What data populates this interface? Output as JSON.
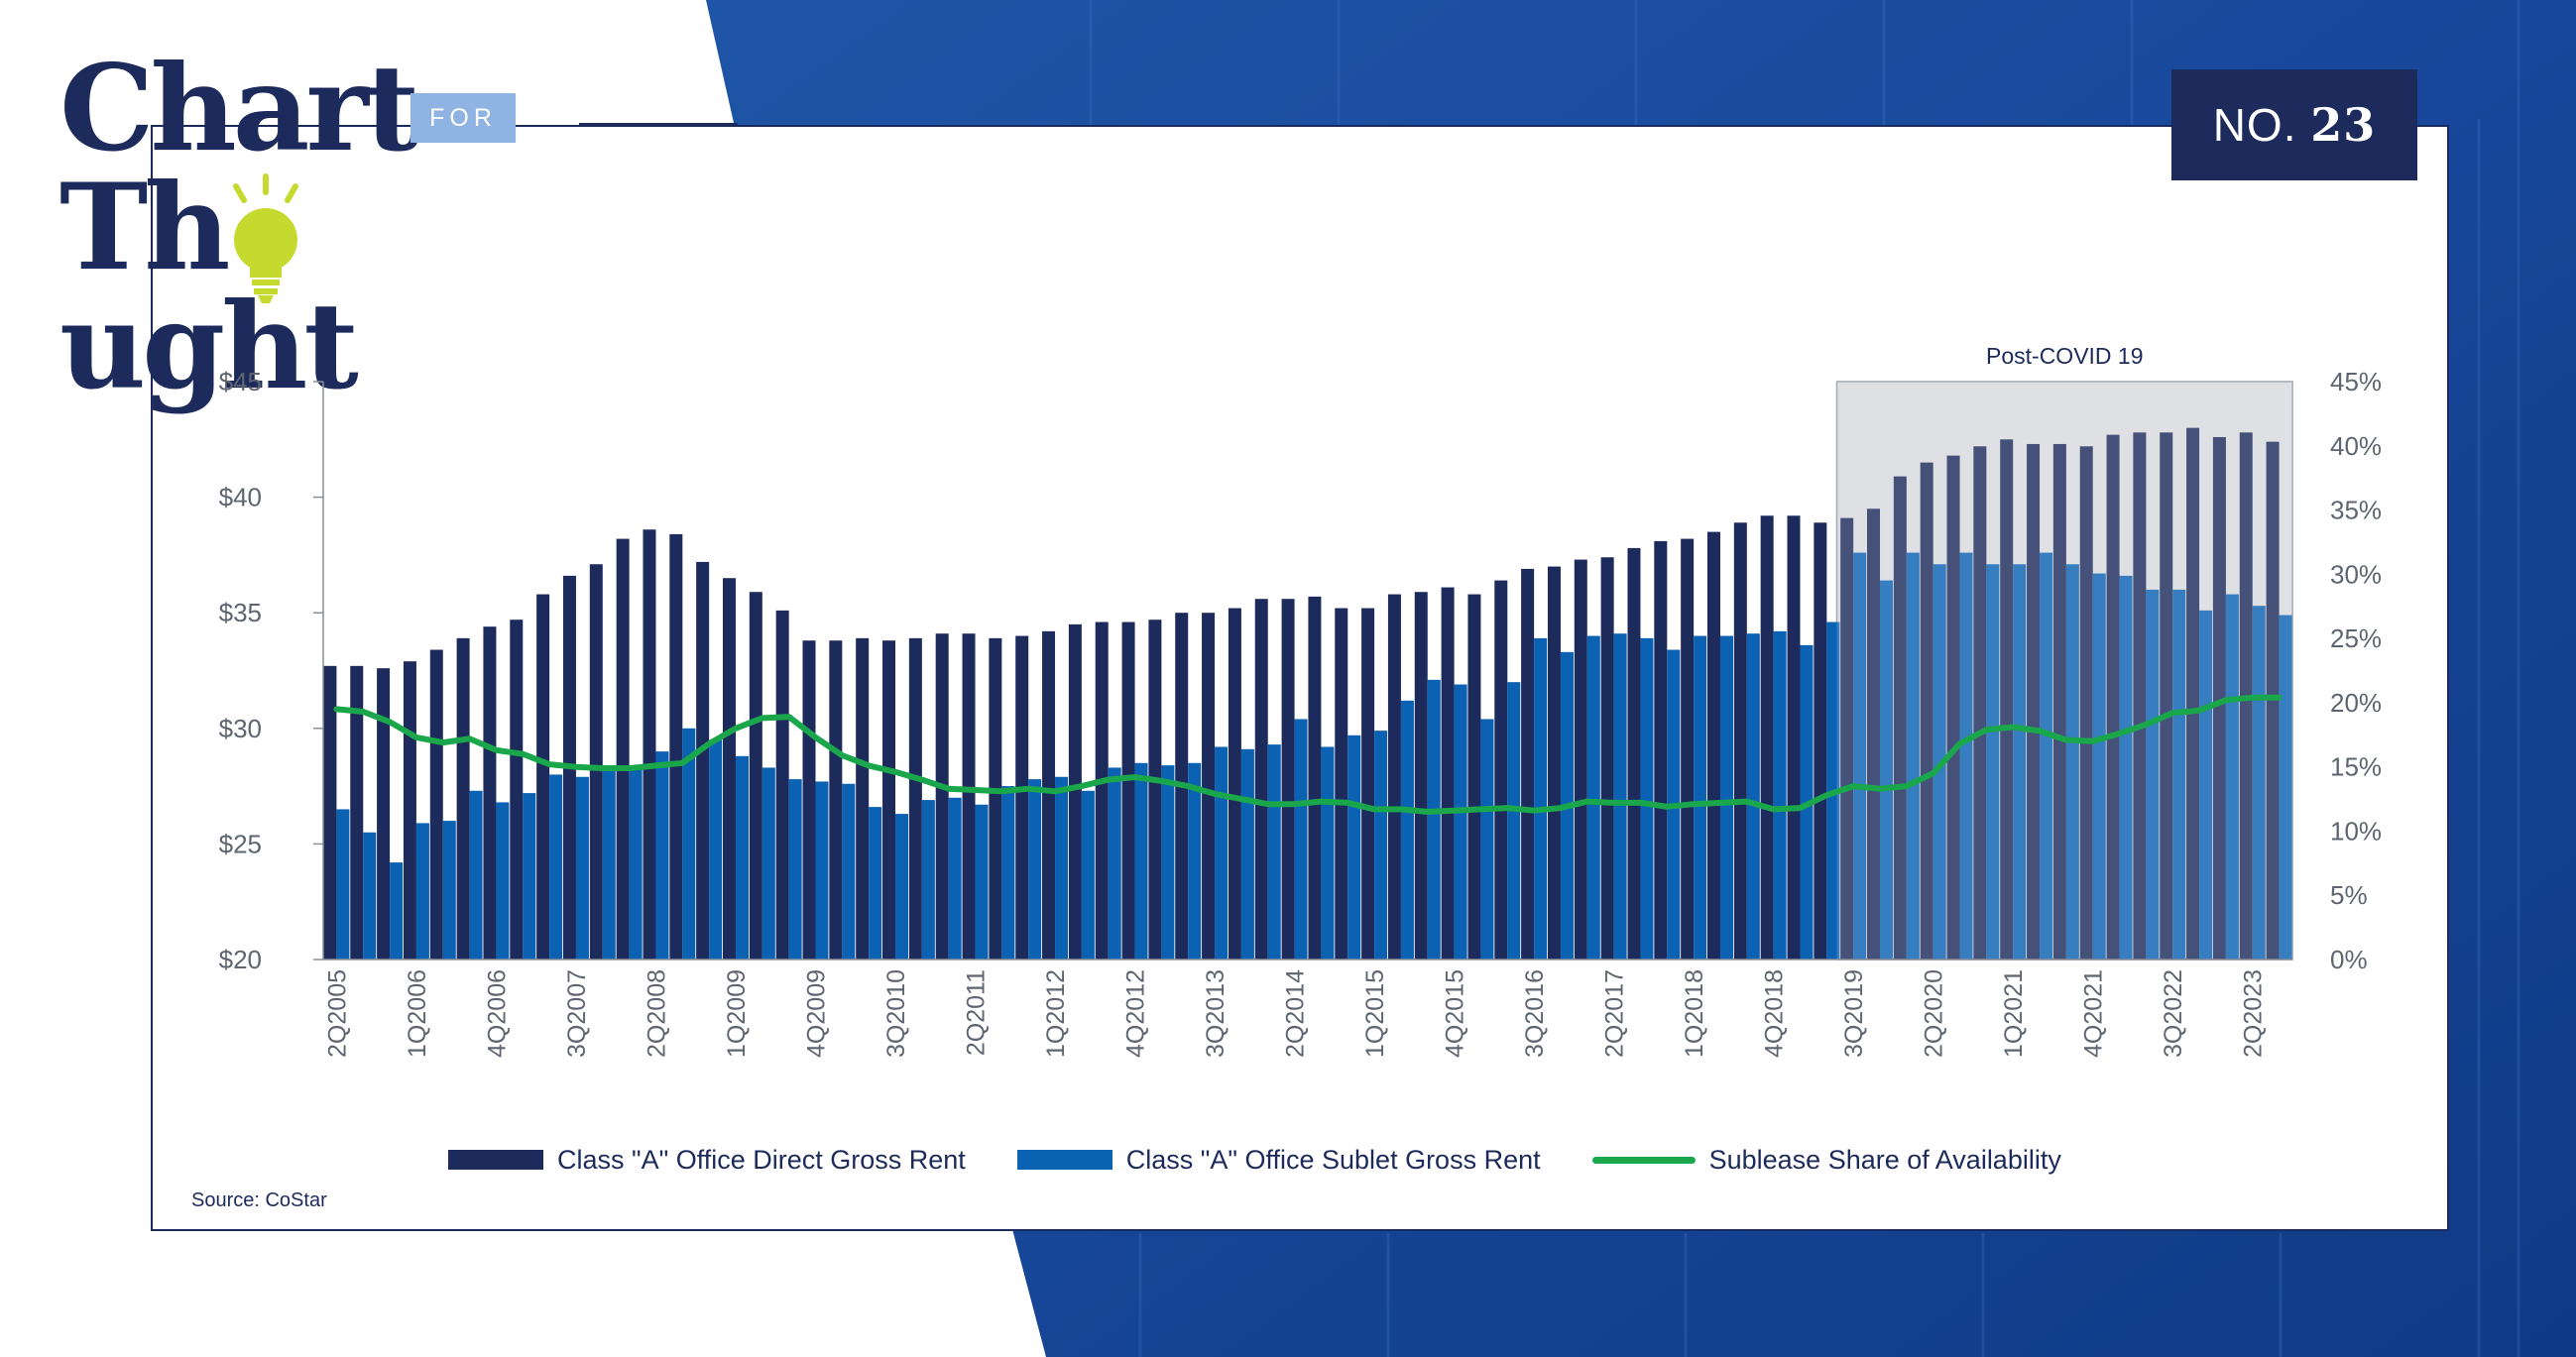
{
  "brand": {
    "line1": "Chart",
    "for": "FOR",
    "line2a": "Th",
    "line2b": "ught"
  },
  "badge": {
    "prefix": "NO.",
    "number": "23"
  },
  "source": "Source: CoStar",
  "colors": {
    "direct": "#1d2b5c",
    "sublet": "#0b62b3",
    "share": "#1aa64a",
    "shade": "#d7d9dd",
    "axis": "#8a8f99"
  },
  "chart_data": {
    "type": "bar",
    "title": "",
    "annotation": "Post-COVID 19",
    "xlabel": "",
    "ylabel": "",
    "ylim": [
      20,
      45
    ],
    "y_ticks": [
      "$20",
      "$25",
      "$30",
      "$35",
      "$40",
      "$45"
    ],
    "y2lim": [
      0,
      45
    ],
    "y2_ticks": [
      "0%",
      "5%",
      "10%",
      "15%",
      "20%",
      "25%",
      "30%",
      "35%",
      "40%",
      "45%"
    ],
    "categories": [
      "2Q2005",
      "3Q2005",
      "4Q2005",
      "1Q2006",
      "2Q2006",
      "3Q2006",
      "4Q2006",
      "1Q2007",
      "2Q2007",
      "3Q2007",
      "4Q2007",
      "1Q2008",
      "2Q2008",
      "3Q2008",
      "4Q2008",
      "1Q2009",
      "2Q2009",
      "3Q2009",
      "4Q2009",
      "1Q2010",
      "2Q2010",
      "3Q2010",
      "4Q2010",
      "1Q2011",
      "2Q2011",
      "3Q2011",
      "4Q2011",
      "1Q2012",
      "2Q2012",
      "3Q2012",
      "4Q2012",
      "1Q2013",
      "2Q2013",
      "3Q2013",
      "4Q2013",
      "1Q2014",
      "2Q2014",
      "3Q2014",
      "4Q2014",
      "1Q2015",
      "2Q2015",
      "3Q2015",
      "4Q2015",
      "1Q2016",
      "2Q2016",
      "3Q2016",
      "4Q2016",
      "1Q2017",
      "2Q2017",
      "3Q2017",
      "4Q2017",
      "1Q2018",
      "2Q2018",
      "3Q2018",
      "4Q2018",
      "1Q2019",
      "2Q2019",
      "3Q2019",
      "4Q2019",
      "1Q2020",
      "2Q2020",
      "3Q2020",
      "4Q2020",
      "1Q2021",
      "2Q2021",
      "3Q2021",
      "4Q2021",
      "1Q2022",
      "2Q2022",
      "3Q2022",
      "4Q2022",
      "1Q2023",
      "2Q2023",
      "3Q2023"
    ],
    "x_tick_labels": [
      "2Q2005",
      "1Q2006",
      "4Q2006",
      "3Q2007",
      "2Q2008",
      "1Q2009",
      "4Q2009",
      "3Q2010",
      "2Q2011",
      "1Q2012",
      "4Q2012",
      "3Q2013",
      "2Q2014",
      "1Q2015",
      "4Q2015",
      "3Q2016",
      "2Q2017",
      "1Q2018",
      "4Q2018",
      "3Q2019",
      "2Q2020",
      "1Q2021",
      "4Q2021",
      "3Q2022",
      "2Q2023"
    ],
    "x_tick_every": 3,
    "shade_from": "3Q2019",
    "series": [
      {
        "name": "Class \"A\" Office Direct Gross Rent",
        "kind": "bar",
        "axis": "left",
        "values": [
          32.7,
          32.7,
          32.6,
          32.9,
          33.4,
          33.9,
          34.4,
          34.7,
          35.8,
          36.6,
          37.1,
          38.2,
          38.6,
          38.4,
          37.2,
          36.5,
          35.9,
          35.1,
          33.8,
          33.8,
          33.9,
          33.8,
          33.9,
          34.1,
          34.1,
          33.9,
          34.0,
          34.2,
          34.5,
          34.6,
          34.6,
          34.7,
          35.0,
          35.0,
          35.2,
          35.6,
          35.6,
          35.7,
          35.2,
          35.2,
          35.8,
          35.9,
          36.1,
          35.8,
          36.4,
          36.9,
          37.0,
          37.3,
          37.4,
          37.8,
          38.1,
          38.2,
          38.5,
          38.9,
          39.2,
          39.2,
          38.9,
          39.1,
          39.5,
          40.9,
          41.5,
          41.8,
          42.2,
          42.5,
          42.3,
          42.3,
          42.2,
          42.7,
          42.8,
          42.8,
          43.0,
          42.6,
          42.8,
          42.4
        ]
      },
      {
        "name": "Class \"A\" Office Sublet Gross Rent",
        "kind": "bar",
        "axis": "left",
        "values": [
          26.5,
          25.5,
          24.2,
          25.9,
          26.0,
          27.3,
          26.8,
          27.2,
          28.0,
          27.9,
          28.3,
          28.3,
          29.0,
          30.0,
          29.5,
          28.8,
          28.3,
          27.8,
          27.7,
          27.6,
          26.6,
          26.3,
          26.9,
          27.0,
          26.7,
          27.5,
          27.8,
          27.9,
          27.3,
          28.3,
          28.5,
          28.4,
          28.5,
          29.2,
          29.1,
          29.3,
          30.4,
          29.2,
          29.7,
          29.9,
          31.2,
          32.1,
          31.9,
          30.4,
          32.0,
          33.9,
          33.3,
          34.0,
          34.1,
          33.9,
          33.4,
          34.0,
          34.0,
          34.1,
          34.2,
          33.6,
          34.6,
          37.6,
          36.4,
          37.6,
          37.1,
          37.6,
          37.1,
          37.1,
          37.6,
          37.1,
          36.7,
          36.6,
          36.0,
          36.0,
          35.1,
          35.8,
          35.3,
          34.9
        ]
      },
      {
        "name": "Sublease Share of Availability",
        "kind": "line",
        "axis": "right",
        "values": [
          19.5,
          19.3,
          18.5,
          17.3,
          16.9,
          17.2,
          16.3,
          16.0,
          15.2,
          15.0,
          14.9,
          14.9,
          15.1,
          15.3,
          16.8,
          18.0,
          18.8,
          18.9,
          17.3,
          15.9,
          15.1,
          14.6,
          14.0,
          13.3,
          13.2,
          13.1,
          13.3,
          13.1,
          13.5,
          14.0,
          14.2,
          13.9,
          13.5,
          12.9,
          12.5,
          12.1,
          12.1,
          12.3,
          12.2,
          11.7,
          11.7,
          11.5,
          11.6,
          11.7,
          11.8,
          11.6,
          11.8,
          12.3,
          12.2,
          12.2,
          11.9,
          12.1,
          12.2,
          12.3,
          11.7,
          11.8,
          12.8,
          13.5,
          13.3,
          13.5,
          14.5,
          16.8,
          17.9,
          18.1,
          17.8,
          17.1,
          17.0,
          17.6,
          18.3,
          19.2,
          19.4,
          20.2,
          20.4,
          20.4
        ]
      }
    ],
    "legend_position": "bottom"
  }
}
